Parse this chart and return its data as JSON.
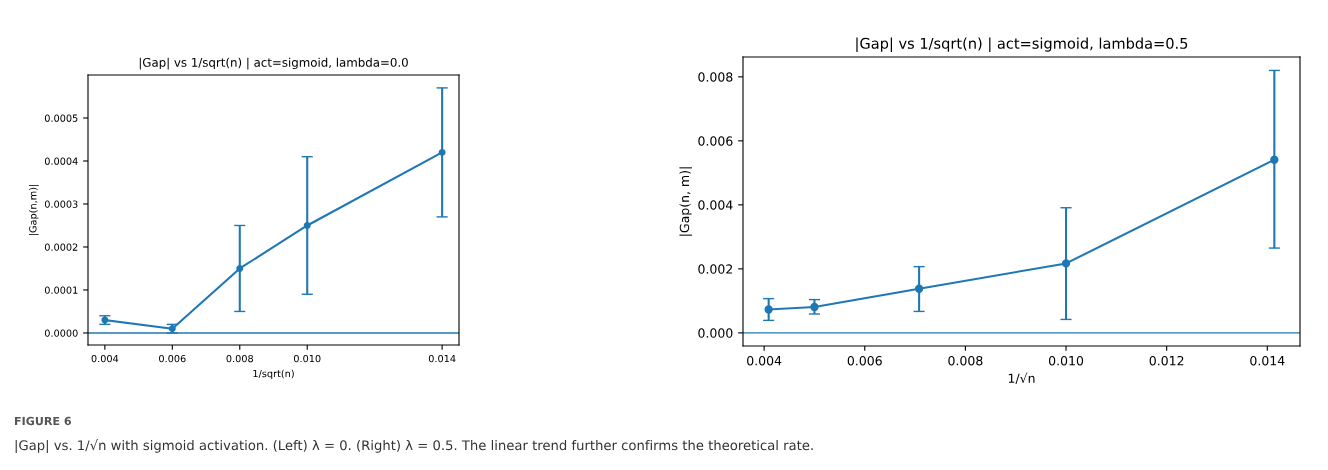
{
  "chart_data": [
    {
      "type": "line",
      "title": "|Gap| vs 1/sqrt(n) | act=sigmoid, lambda=0.0",
      "xlabel": "1/sqrt(n)",
      "ylabel": "|Gap(n,m)|",
      "x": [
        0.004,
        0.006,
        0.008,
        0.01,
        0.014
      ],
      "series": [
        {
          "color": "#1f77b4",
          "values": [
            3e-05,
            1e-05,
            0.00015,
            0.00025,
            0.00042
          ],
          "errors": [
            [
              2e-05,
              4e-05
            ],
            [
              0.0,
              2e-05
            ],
            [
              5e-05,
              0.00025
            ],
            [
              9e-05,
              0.00041
            ],
            [
              0.00027,
              0.00057
            ]
          ]
        }
      ],
      "xlim": [
        0.0035,
        0.0145
      ],
      "xticks": [
        {
          "value": 0.004,
          "label": "0.004"
        },
        {
          "value": 0.006,
          "label": "0.006"
        },
        {
          "value": 0.008,
          "label": "0.008"
        },
        {
          "value": 0.01,
          "label": "0.010"
        },
        {
          "value": 0.014,
          "label": "0.014"
        }
      ],
      "ylim": [
        -2.8e-05,
        0.0006
      ],
      "yticks": [
        {
          "value": 0,
          "label": "0.0000"
        },
        {
          "value": 0.0001,
          "label": "0.0001"
        },
        {
          "value": 0.0002,
          "label": "0.0002"
        },
        {
          "value": 0.0003,
          "label": "0.0003"
        },
        {
          "value": 0.0004,
          "label": "0.0004"
        },
        {
          "value": 0.0005,
          "label": "0.0005"
        }
      ],
      "ref_lines": [
        {
          "axis": "y",
          "value": 0,
          "color": "#1f77b4"
        }
      ],
      "marker": "circle",
      "grid": false,
      "annotations": [
        "FIGURE 6",
        "|Gap| vs. 1/√n with sigmoid activation. (Left) λ = 0. (Right) λ = 0.5. The linear trend further confirms the theoretical rate."
      ]
    },
    {
      "type": "line",
      "title": "|Gap| vs 1/sqrt(n) | act=sigmoid, lambda=0.5",
      "xlabel": "1/√n",
      "ylabel": "|Gap(n, m)|",
      "x": [
        0.00409,
        0.005,
        0.00708,
        0.01,
        0.01414
      ],
      "series": [
        {
          "color": "#1f77b4",
          "values": [
            0.00073,
            0.00081,
            0.00138,
            0.00217,
            0.00541
          ],
          "errors": [
            [
              0.00039,
              0.00107
            ],
            [
              0.00059,
              0.00104
            ],
            [
              0.00067,
              0.00207
            ],
            [
              0.00042,
              0.00391
            ],
            [
              0.00265,
              0.0082
            ]
          ]
        }
      ],
      "xlim": [
        0.00358,
        0.01465
      ],
      "xticks": [
        {
          "value": 0.004,
          "label": "0.004"
        },
        {
          "value": 0.006,
          "label": "0.006"
        },
        {
          "value": 0.008,
          "label": "0.008"
        },
        {
          "value": 0.01,
          "label": "0.010"
        },
        {
          "value": 0.012,
          "label": "0.012"
        },
        {
          "value": 0.014,
          "label": "0.014"
        }
      ],
      "ylim": [
        -0.00041,
        0.00862
      ],
      "yticks": [
        {
          "value": 0,
          "label": "0.000"
        },
        {
          "value": 0.002,
          "label": "0.002"
        },
        {
          "value": 0.004,
          "label": "0.004"
        },
        {
          "value": 0.006,
          "label": "0.006"
        },
        {
          "value": 0.008,
          "label": "0.008"
        }
      ],
      "ref_lines": [
        {
          "axis": "y",
          "value": 0,
          "color": "#1f77b4"
        }
      ],
      "marker": "circle",
      "grid": false
    }
  ]
}
